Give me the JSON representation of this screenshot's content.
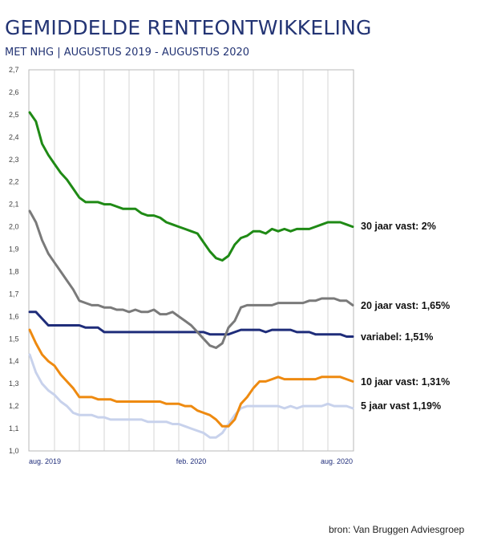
{
  "header": {
    "title": "GEMIDDELDE RENTEONTWIKKELING",
    "subtitle": "MET NHG | AUGUSTUS 2019 - AUGUSTUS 2020"
  },
  "source": "bron: Van Bruggen Adviesgroep",
  "chart_data": {
    "type": "line",
    "title": "GEMIDDELDE RENTEONTWIKKELING",
    "subtitle": "MET NHG | AUGUSTUS 2019 - AUGUSTUS 2020",
    "xlabel": "",
    "ylabel": "",
    "ylim": [
      1.0,
      2.7
    ],
    "ytick_step": 0.1,
    "yticks": [
      "1,0",
      "1,1",
      "1,2",
      "1,3",
      "1,4",
      "1,5",
      "1,6",
      "1,7",
      "1,8",
      "1,9",
      "2,0",
      "2,1",
      "2,2",
      "2,3",
      "2,4",
      "2,5",
      "2,6",
      "2,7"
    ],
    "x_count": 53,
    "x_ticks": [
      {
        "index": 0,
        "label": "aug. 2019"
      },
      {
        "index": 26,
        "label": "feb. 2020"
      },
      {
        "index": 52,
        "label": "aug. 2020"
      }
    ],
    "grid": "vertical",
    "series": [
      {
        "name": "30 jaar vast: 2%",
        "color": "#1f8a15",
        "values": [
          2.51,
          2.47,
          2.37,
          2.32,
          2.28,
          2.24,
          2.21,
          2.17,
          2.13,
          2.11,
          2.11,
          2.11,
          2.1,
          2.1,
          2.09,
          2.08,
          2.08,
          2.08,
          2.06,
          2.05,
          2.05,
          2.04,
          2.02,
          2.01,
          2.0,
          1.99,
          1.98,
          1.97,
          1.93,
          1.89,
          1.86,
          1.85,
          1.87,
          1.92,
          1.95,
          1.96,
          1.98,
          1.98,
          1.97,
          1.99,
          1.98,
          1.99,
          1.98,
          1.99,
          1.99,
          1.99,
          2.0,
          2.01,
          2.02,
          2.02,
          2.02,
          2.01,
          2.0
        ]
      },
      {
        "name": "20 jaar vast: 1,65%",
        "color": "#7a7a7a",
        "values": [
          2.07,
          2.02,
          1.94,
          1.88,
          1.84,
          1.8,
          1.76,
          1.72,
          1.67,
          1.66,
          1.65,
          1.65,
          1.64,
          1.64,
          1.63,
          1.63,
          1.62,
          1.63,
          1.62,
          1.62,
          1.63,
          1.61,
          1.61,
          1.62,
          1.6,
          1.58,
          1.56,
          1.53,
          1.5,
          1.47,
          1.46,
          1.48,
          1.55,
          1.58,
          1.64,
          1.65,
          1.65,
          1.65,
          1.65,
          1.65,
          1.66,
          1.66,
          1.66,
          1.66,
          1.66,
          1.67,
          1.67,
          1.68,
          1.68,
          1.68,
          1.67,
          1.67,
          1.65
        ]
      },
      {
        "name": "variabel: 1,51%",
        "color": "#1f2d7a",
        "values": [
          1.62,
          1.62,
          1.59,
          1.56,
          1.56,
          1.56,
          1.56,
          1.56,
          1.56,
          1.55,
          1.55,
          1.55,
          1.53,
          1.53,
          1.53,
          1.53,
          1.53,
          1.53,
          1.53,
          1.53,
          1.53,
          1.53,
          1.53,
          1.53,
          1.53,
          1.53,
          1.53,
          1.53,
          1.53,
          1.52,
          1.52,
          1.52,
          1.52,
          1.53,
          1.54,
          1.54,
          1.54,
          1.54,
          1.53,
          1.54,
          1.54,
          1.54,
          1.54,
          1.53,
          1.53,
          1.53,
          1.52,
          1.52,
          1.52,
          1.52,
          1.52,
          1.51,
          1.51
        ]
      },
      {
        "name": "10 jaar vast: 1,31%",
        "color": "#ee8a10",
        "values": [
          1.54,
          1.48,
          1.43,
          1.4,
          1.38,
          1.34,
          1.31,
          1.28,
          1.24,
          1.24,
          1.24,
          1.23,
          1.23,
          1.23,
          1.22,
          1.22,
          1.22,
          1.22,
          1.22,
          1.22,
          1.22,
          1.22,
          1.21,
          1.21,
          1.21,
          1.2,
          1.2,
          1.18,
          1.17,
          1.16,
          1.14,
          1.11,
          1.11,
          1.14,
          1.21,
          1.24,
          1.28,
          1.31,
          1.31,
          1.32,
          1.33,
          1.32,
          1.32,
          1.32,
          1.32,
          1.32,
          1.32,
          1.33,
          1.33,
          1.33,
          1.33,
          1.32,
          1.31
        ]
      },
      {
        "name": "5 jaar vast 1,19%",
        "color": "#c8d2ec",
        "values": [
          1.43,
          1.35,
          1.3,
          1.27,
          1.25,
          1.22,
          1.2,
          1.17,
          1.16,
          1.16,
          1.16,
          1.15,
          1.15,
          1.14,
          1.14,
          1.14,
          1.14,
          1.14,
          1.14,
          1.13,
          1.13,
          1.13,
          1.13,
          1.12,
          1.12,
          1.11,
          1.1,
          1.09,
          1.08,
          1.06,
          1.06,
          1.08,
          1.12,
          1.16,
          1.19,
          1.2,
          1.2,
          1.2,
          1.2,
          1.2,
          1.2,
          1.19,
          1.2,
          1.19,
          1.2,
          1.2,
          1.2,
          1.2,
          1.21,
          1.2,
          1.2,
          1.2,
          1.19
        ]
      }
    ]
  }
}
